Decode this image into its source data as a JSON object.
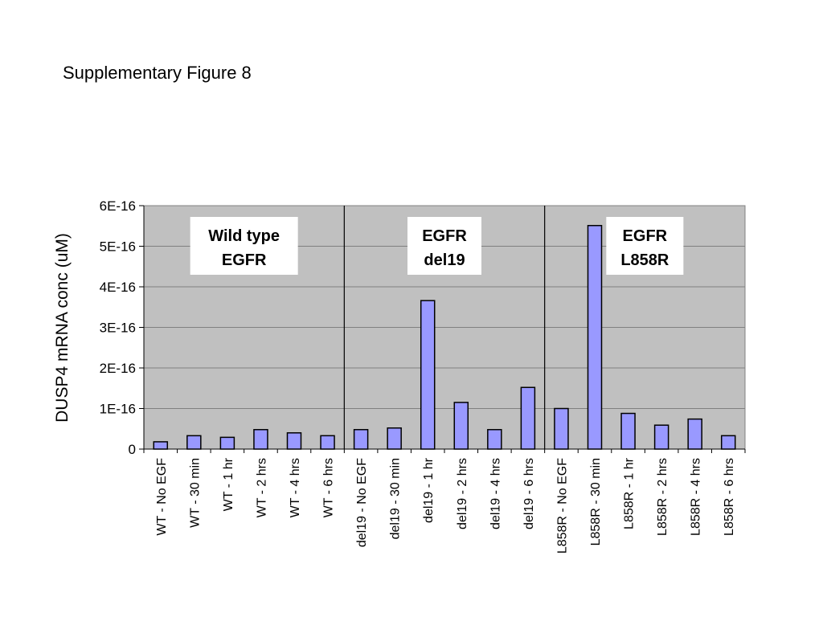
{
  "page": {
    "title": "Supplementary Figure 8"
  },
  "colors": {
    "plot_background": "#c0c0c0",
    "bar_fill": "#9999ff",
    "bar_stroke": "#000000",
    "gridline": "#808080",
    "label_box": "#ffffff"
  },
  "chart_data": {
    "type": "bar",
    "title": "",
    "xlabel": "",
    "ylabel": "DUSP4 mRNA conc (uM)",
    "ylim": [
      0,
      6e-16
    ],
    "yticks": [
      {
        "value": 0,
        "label": "0"
      },
      {
        "value": 1e-16,
        "label": "1E-16"
      },
      {
        "value": 2e-16,
        "label": "2E-16"
      },
      {
        "value": 3e-16,
        "label": "3E-16"
      },
      {
        "value": 4e-16,
        "label": "4E-16"
      },
      {
        "value": 5e-16,
        "label": "5E-16"
      },
      {
        "value": 6e-16,
        "label": "6E-16"
      }
    ],
    "grid": true,
    "legend": "none",
    "categories": [
      "WT - No EGF",
      "WT - 30 min",
      "WT - 1 hr",
      "WT - 2 hrs",
      "WT - 4 hrs",
      "WT - 6 hrs",
      "del19 - No EGF",
      "del19 - 30 min",
      "del19 - 1 hr",
      "del19 - 2 hrs",
      "del19 - 4 hrs",
      "del19 - 6 hrs",
      "L858R - No EGF",
      "L858R - 30 min",
      "L858R - 1 hr",
      "L858R - 2 hrs",
      "L858R - 4 hrs",
      "L858R - 6 hrs"
    ],
    "values": [
      1.8e-17,
      3.3e-17,
      2.9e-17,
      4.8e-17,
      4e-17,
      3.3e-17,
      4.8e-17,
      5.2e-17,
      3.66e-16,
      1.15e-16,
      4.8e-17,
      1.52e-16,
      1e-16,
      5.51e-16,
      8.8e-17,
      5.9e-17,
      7.4e-17,
      3.3e-17
    ],
    "groups": [
      {
        "lines": [
          "Wild type",
          "EGFR"
        ],
        "from": 0,
        "to": 5
      },
      {
        "lines": [
          "EGFR",
          "del19"
        ],
        "from": 6,
        "to": 11
      },
      {
        "lines": [
          "EGFR",
          "L858R"
        ],
        "from": 12,
        "to": 17
      }
    ]
  }
}
